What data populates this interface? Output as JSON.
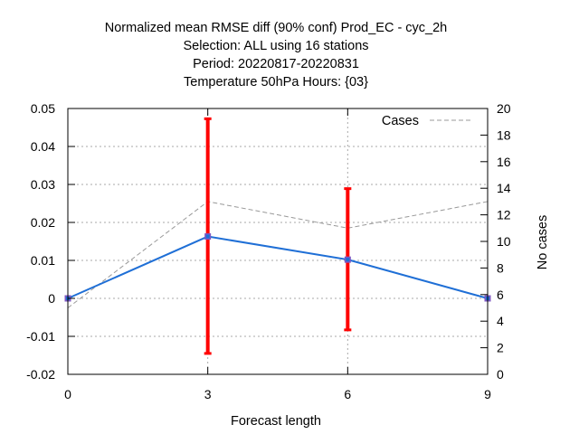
{
  "chart_data": {
    "type": "line",
    "title_lines": [
      "Normalized mean RMSE diff (90% conf) Prod_EC - cyc_2h",
      "Selection: ALL using    16 stations",
      "Period: 20220817-20220831",
      "Temperature 50hPa   Hours: {03}"
    ],
    "xlabel": "Forecast length",
    "ylabel": "",
    "y2label": "No cases",
    "x": [
      0,
      3,
      6,
      9
    ],
    "xlim": [
      0,
      9
    ],
    "xticks": [
      "0",
      "3",
      "6",
      "9"
    ],
    "ylim": [
      -0.02,
      0.05
    ],
    "yticks": [
      "-0.02",
      "-0.01",
      "0",
      "0.01",
      "0.02",
      "0.03",
      "0.04",
      "0.05"
    ],
    "y2lim": [
      0,
      20
    ],
    "y2ticks": [
      "0",
      "2",
      "4",
      "6",
      "8",
      "10",
      "12",
      "14",
      "16",
      "18",
      "20"
    ],
    "grid": "dotted",
    "series": [
      {
        "values": [
          0.0,
          0.0163,
          0.0102,
          0.0
        ],
        "color": "#1f6fd6",
        "axis": "left"
      },
      {
        "name": "Cases",
        "values": [
          5,
          13,
          11,
          13
        ],
        "color": "#999999",
        "style": "dashed",
        "axis": "right"
      }
    ],
    "error_bars": {
      "color": "#ff0000",
      "x": [
        3,
        6
      ],
      "low": [
        -0.0145,
        -0.0083
      ],
      "high": [
        0.0473,
        0.0289
      ]
    },
    "legend_position": "top-right"
  }
}
